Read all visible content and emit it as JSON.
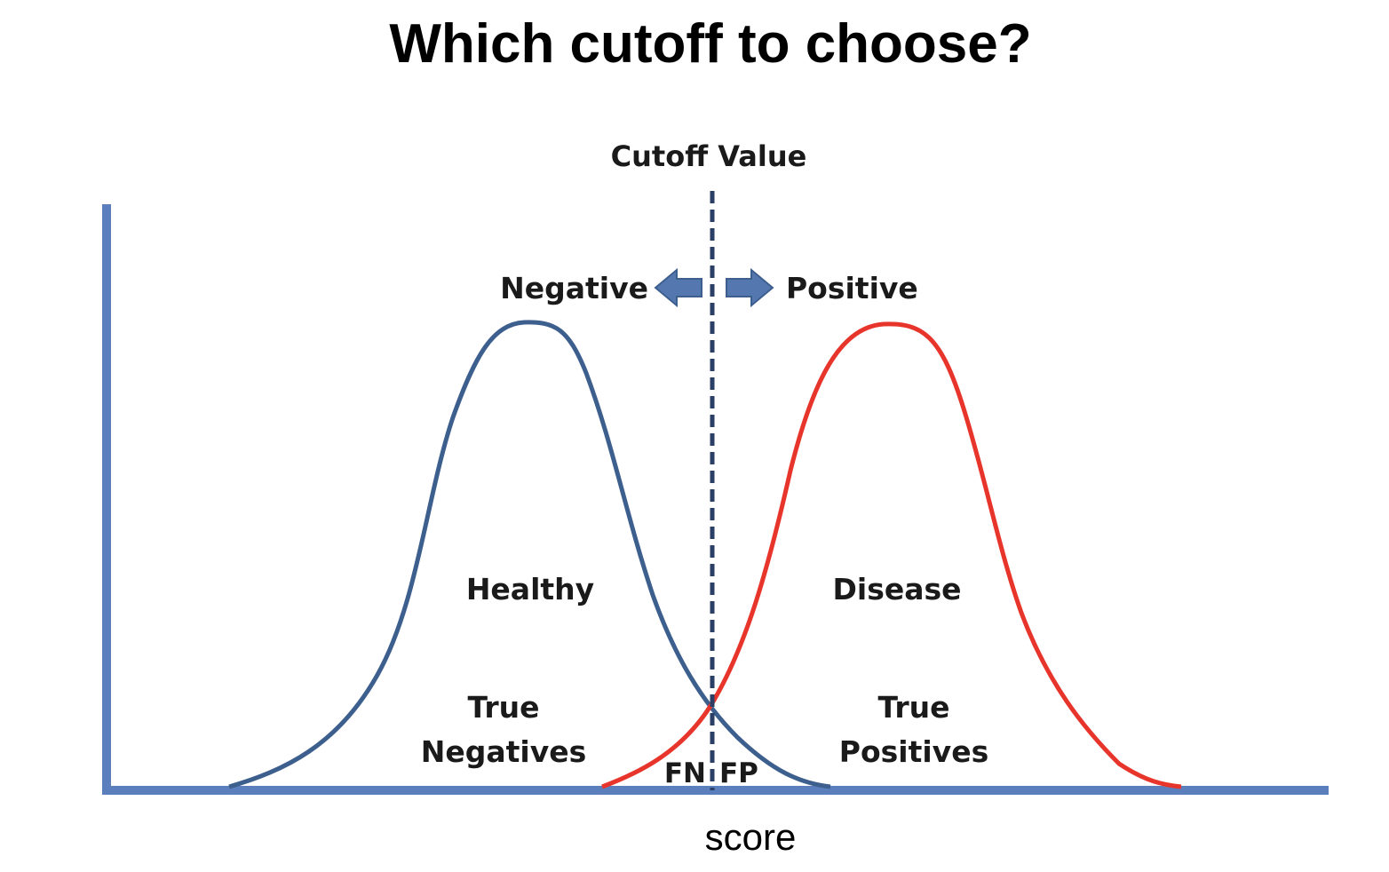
{
  "title": "Which cutoff to choose?",
  "cutoff_label": "Cutoff Value",
  "direction": {
    "negative": "Negative",
    "positive": "Positive"
  },
  "distributions": {
    "healthy": {
      "label": "Healthy",
      "color": "#3d5f8e"
    },
    "disease": {
      "label": "Disease",
      "color": "#e8352c"
    }
  },
  "regions": {
    "true_negatives_line1": "True",
    "true_negatives_line2": "Negatives",
    "true_positives_line1": "True",
    "true_positives_line2": "Positives",
    "false_negatives": "FN",
    "false_positives": "FP"
  },
  "x_axis_label": "score",
  "colors": {
    "axis": "#5b7fbd",
    "arrow_fill": "#5577b0",
    "cutoff_line": "#2a3e66"
  }
}
